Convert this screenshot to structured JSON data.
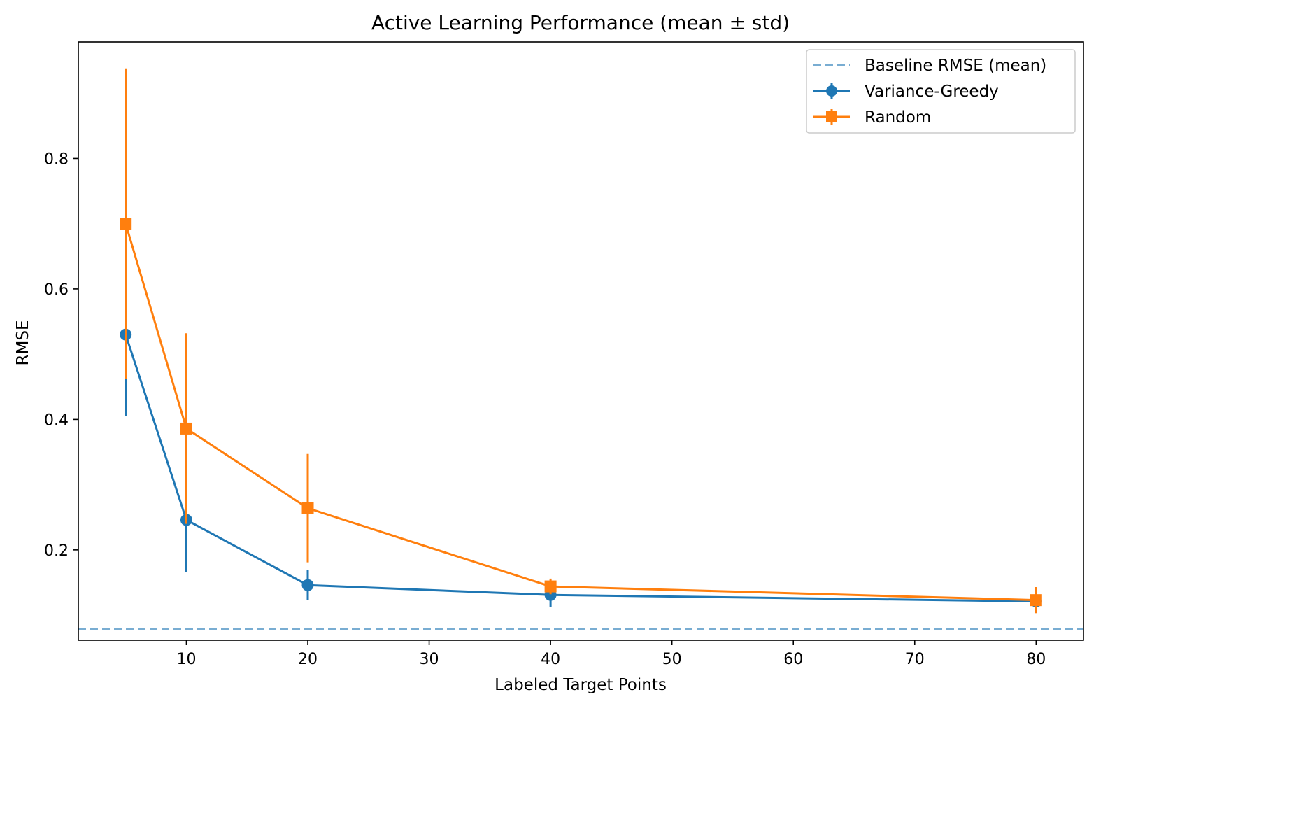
{
  "chart_data": {
    "type": "line",
    "title": "Active Learning Performance (mean ± std)",
    "xlabel": "Labeled Target Points",
    "ylabel": "RMSE",
    "xlim": [
      1.1,
      83.9
    ],
    "ylim": [
      0.0615,
      0.9785
    ],
    "xticks": [
      10,
      20,
      30,
      40,
      50,
      60,
      70,
      80
    ],
    "xtick_labels": [
      "10",
      "20",
      "30",
      "40",
      "50",
      "60",
      "70",
      "80"
    ],
    "yticks": [
      0.2,
      0.4,
      0.6,
      0.8
    ],
    "ytick_labels": [
      "0.2",
      "0.4",
      "0.6",
      "0.8"
    ],
    "grid": false,
    "legend_position": "top-right",
    "baseline": {
      "name": "Baseline RMSE (mean)",
      "value": 0.079,
      "color": "#1f77b4",
      "style": "dashed"
    },
    "series": [
      {
        "name": "Variance-Greedy",
        "color": "#1f77b4",
        "marker": "circle",
        "x": [
          5,
          10,
          20,
          40,
          80
        ],
        "y": [
          0.53,
          0.246,
          0.146,
          0.131,
          0.121
        ],
        "yerr": [
          0.125,
          0.08,
          0.023,
          0.018,
          0.01
        ]
      },
      {
        "name": "Random",
        "color": "#ff7f0e",
        "marker": "square",
        "x": [
          5,
          10,
          20,
          40,
          80
        ],
        "y": [
          0.7,
          0.386,
          0.264,
          0.144,
          0.123
        ],
        "yerr": [
          0.238,
          0.146,
          0.083,
          0.012,
          0.02
        ]
      }
    ]
  }
}
